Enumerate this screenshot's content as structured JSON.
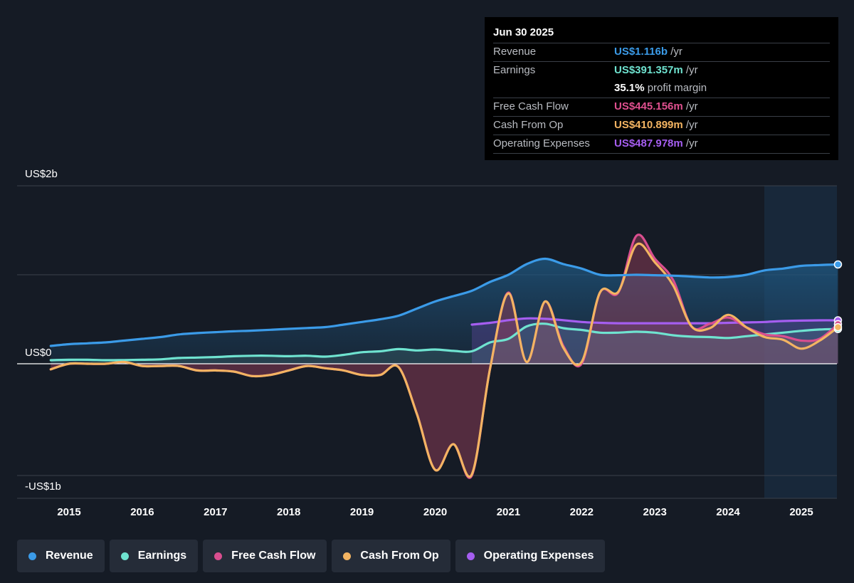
{
  "tooltip": {
    "date": "Jun 30 2025",
    "rows": [
      {
        "label": "Revenue",
        "value": "US$1.116b",
        "unit": "/yr",
        "color": "#3b9be8"
      },
      {
        "label": "Earnings",
        "value": "US$391.357m",
        "unit": "/yr",
        "color": "#6fe3d0"
      },
      {
        "label": "",
        "value": "35.1%",
        "unit": "profit margin",
        "color": "#ffffff"
      },
      {
        "label": "Free Cash Flow",
        "value": "US$445.156m",
        "unit": "/yr",
        "color": "#e0508f"
      },
      {
        "label": "Cash From Op",
        "value": "US$410.899m",
        "unit": "/yr",
        "color": "#f3b462"
      },
      {
        "label": "Operating Expenses",
        "value": "US$487.978m",
        "unit": "/yr",
        "color": "#a55ef0"
      }
    ]
  },
  "legend": [
    {
      "label": "Revenue",
      "color": "#3b9be8"
    },
    {
      "label": "Earnings",
      "color": "#6fe3d0"
    },
    {
      "label": "Free Cash Flow",
      "color": "#d94e8f"
    },
    {
      "label": "Cash From Op",
      "color": "#f3b462"
    },
    {
      "label": "Operating Expenses",
      "color": "#a55ef0"
    }
  ],
  "chart_data": {
    "type": "area",
    "x_ticks": [
      "2015",
      "2016",
      "2017",
      "2018",
      "2019",
      "2020",
      "2021",
      "2022",
      "2023",
      "2024",
      "2025"
    ],
    "y_ticks": [
      {
        "value": 2000,
        "label": "US$2b"
      },
      {
        "value": 0,
        "label": "US$0"
      },
      {
        "value": -1000,
        "label": "-US$1b"
      }
    ],
    "ylim": [
      -1200,
      2000
    ],
    "xlim": [
      2014.05,
      2025.53
    ],
    "units": "US$m",
    "series": [
      {
        "name": "Revenue",
        "color": "#3b9be8",
        "x": [
          2014.75,
          2015.0,
          2015.25,
          2015.5,
          2015.75,
          2016.0,
          2016.25,
          2016.5,
          2016.75,
          2017.0,
          2017.25,
          2017.5,
          2017.75,
          2018.0,
          2018.25,
          2018.5,
          2018.75,
          2019.0,
          2019.25,
          2019.5,
          2019.75,
          2020.0,
          2020.25,
          2020.5,
          2020.75,
          2021.0,
          2021.25,
          2021.5,
          2021.75,
          2022.0,
          2022.25,
          2022.5,
          2022.75,
          2023.0,
          2023.25,
          2023.5,
          2023.75,
          2024.0,
          2024.25,
          2024.5,
          2024.75,
          2025.0,
          2025.25,
          2025.5
        ],
        "values": [
          200,
          220,
          230,
          240,
          260,
          280,
          300,
          330,
          345,
          355,
          365,
          372,
          382,
          392,
          402,
          412,
          440,
          470,
          500,
          540,
          620,
          700,
          760,
          820,
          920,
          1000,
          1120,
          1180,
          1120,
          1070,
          1000,
          995,
          1000,
          995,
          990,
          980,
          970,
          975,
          1000,
          1050,
          1070,
          1100,
          1110,
          1116
        ]
      },
      {
        "name": "Earnings",
        "color": "#6fe3d0",
        "x": [
          2014.75,
          2015.0,
          2015.25,
          2015.5,
          2015.75,
          2016.0,
          2016.25,
          2016.5,
          2016.75,
          2017.0,
          2017.25,
          2017.5,
          2017.75,
          2018.0,
          2018.25,
          2018.5,
          2018.75,
          2019.0,
          2019.25,
          2019.5,
          2019.75,
          2020.0,
          2020.25,
          2020.5,
          2020.75,
          2021.0,
          2021.25,
          2021.5,
          2021.75,
          2022.0,
          2022.25,
          2022.5,
          2022.75,
          2023.0,
          2023.25,
          2023.5,
          2023.75,
          2024.0,
          2024.25,
          2024.5,
          2024.75,
          2025.0,
          2025.25,
          2025.5
        ],
        "values": [
          40,
          45,
          45,
          40,
          42,
          45,
          50,
          65,
          70,
          75,
          85,
          90,
          90,
          85,
          90,
          80,
          100,
          130,
          140,
          165,
          150,
          160,
          145,
          140,
          240,
          280,
          420,
          450,
          400,
          380,
          350,
          350,
          360,
          350,
          320,
          305,
          300,
          290,
          310,
          330,
          350,
          370,
          385,
          391
        ]
      },
      {
        "name": "Free Cash Flow",
        "color": "#d94e8f",
        "x": [
          2014.75,
          2015.0,
          2015.25,
          2015.5,
          2015.75,
          2016.0,
          2016.25,
          2016.5,
          2016.75,
          2017.0,
          2017.25,
          2017.5,
          2017.75,
          2018.0,
          2018.25,
          2018.5,
          2018.75,
          2019.0,
          2019.25,
          2019.5,
          2019.75,
          2020.0,
          2020.25,
          2020.5,
          2020.75,
          2021.0,
          2021.25,
          2021.5,
          2021.75,
          2022.0,
          2022.25,
          2022.5,
          2022.75,
          2023.0,
          2023.25,
          2023.5,
          2023.75,
          2024.0,
          2024.25,
          2024.5,
          2024.75,
          2025.0,
          2025.25,
          2025.5
        ],
        "values": [
          -50,
          0,
          0,
          0,
          20,
          -20,
          -20,
          -20,
          -60,
          -60,
          -70,
          -110,
          -100,
          -60,
          -20,
          -40,
          -60,
          -100,
          -100,
          -30,
          -450,
          -950,
          -720,
          -1000,
          -40,
          800,
          20,
          700,
          200,
          0,
          800,
          800,
          1440,
          1180,
          940,
          420,
          450,
          520,
          410,
          330,
          310,
          260,
          280,
          445
        ]
      },
      {
        "name": "Cash From Op",
        "color": "#f3b462",
        "x": [
          2014.75,
          2015.0,
          2015.25,
          2015.5,
          2015.75,
          2016.0,
          2016.25,
          2016.5,
          2016.75,
          2017.0,
          2017.25,
          2017.5,
          2017.75,
          2018.0,
          2018.25,
          2018.5,
          2018.75,
          2019.0,
          2019.25,
          2019.5,
          2019.75,
          2020.0,
          2020.25,
          2020.5,
          2020.75,
          2021.0,
          2021.25,
          2021.5,
          2021.75,
          2022.0,
          2022.25,
          2022.5,
          2022.75,
          2023.0,
          2023.25,
          2023.5,
          2023.75,
          2024.0,
          2024.25,
          2024.5,
          2024.75,
          2025.0,
          2025.25,
          2025.5
        ],
        "values": [
          -50,
          0,
          0,
          0,
          20,
          -20,
          -20,
          -20,
          -60,
          -60,
          -70,
          -110,
          -100,
          -60,
          -20,
          -40,
          -60,
          -100,
          -100,
          -30,
          -450,
          -950,
          -720,
          -990,
          -40,
          790,
          20,
          700,
          180,
          20,
          800,
          810,
          1340,
          1140,
          880,
          420,
          400,
          550,
          410,
          300,
          270,
          170,
          260,
          411
        ]
      },
      {
        "name": "Operating Expenses",
        "color": "#a55ef0",
        "x": [
          2020.5,
          2020.75,
          2021.0,
          2021.25,
          2021.5,
          2021.75,
          2022.0,
          2022.25,
          2022.5,
          2022.75,
          2023.0,
          2023.25,
          2023.5,
          2023.75,
          2024.0,
          2024.25,
          2024.5,
          2024.75,
          2025.0,
          2025.25,
          2025.5
        ],
        "values": [
          440,
          460,
          490,
          510,
          505,
          490,
          470,
          460,
          455,
          455,
          455,
          455,
          455,
          455,
          460,
          465,
          470,
          480,
          485,
          488,
          488
        ]
      }
    ]
  }
}
